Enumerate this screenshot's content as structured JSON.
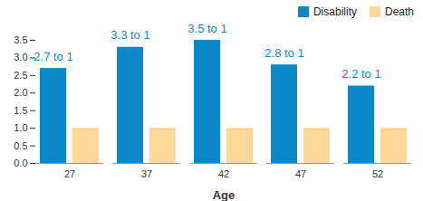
{
  "chart_data": {
    "type": "bar",
    "categories": [
      "27",
      "37",
      "42",
      "47",
      "52"
    ],
    "x_label": "Age",
    "series": [
      {
        "name": "Disability",
        "color": "#0a87c9",
        "values": [
          2.7,
          3.3,
          3.5,
          2.8,
          2.2
        ],
        "value_labels": [
          "2.7 to 1",
          "3.3 to 1",
          "3.5 to 1",
          "2.8 to 1",
          "2.2 to 1"
        ]
      },
      {
        "name": "Death",
        "color": "#fdd797",
        "values": [
          1.0,
          1.0,
          1.0,
          1.0,
          1.0
        ]
      }
    ],
    "ylim": [
      0,
      3.5
    ],
    "yticks": [
      {
        "value": 0,
        "label": "0.0"
      },
      {
        "value": 0.5,
        "label": "0.5"
      },
      {
        "value": 1,
        "label": "1.0"
      },
      {
        "value": 1.5,
        "label": "1.5"
      },
      {
        "value": 2,
        "label": "2.0"
      },
      {
        "value": 2.5,
        "label": "2.5"
      },
      {
        "value": 3,
        "label": "3.0"
      },
      {
        "value": 3.5,
        "label": "3.5"
      }
    ],
    "grid": false,
    "legend": "top-right"
  }
}
